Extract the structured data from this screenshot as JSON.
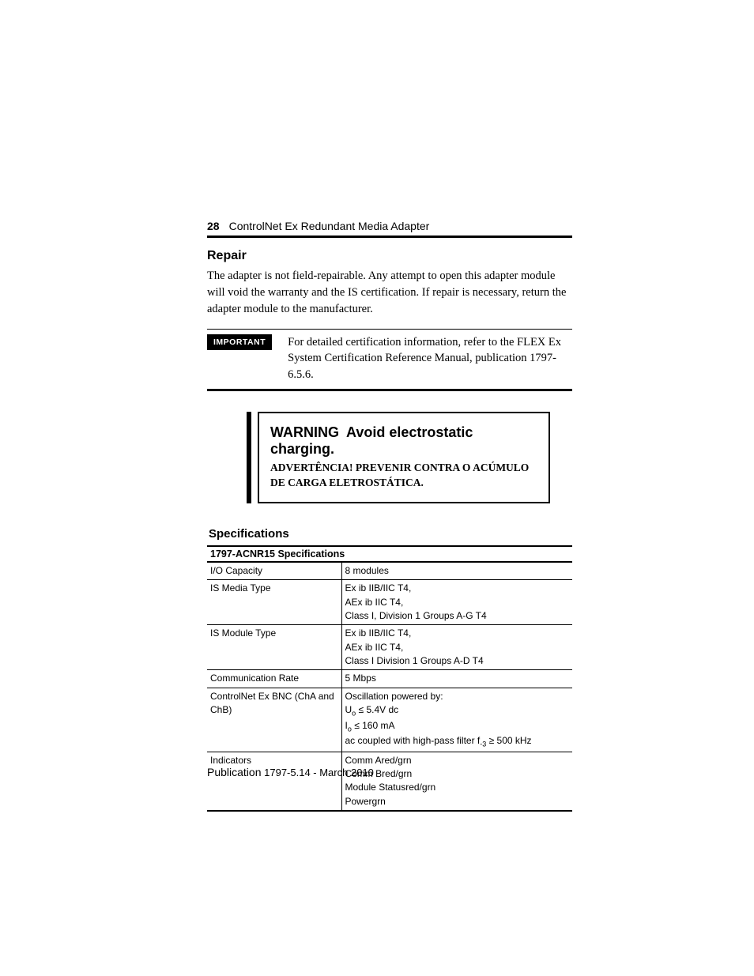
{
  "header": {
    "page_number": "28",
    "doc_title": "ControlNet Ex Redundant Media Adapter"
  },
  "repair": {
    "heading": "Repair",
    "body": "The adapter is not field-repairable. Any attempt to open this adapter module will void the warranty and the IS certification. If repair is necessary, return the adapter module to the manufacturer."
  },
  "important": {
    "badge": "IMPORTANT",
    "text": "For detailed certification information, refer to the FLEX Ex System Certification Reference Manual, publication 1797-6.5.6."
  },
  "warning": {
    "label": "WARNING",
    "msg_en": "Avoid electrostatic charging.",
    "sub_label": "ADVERTÊNCIA!",
    "sub_msg": "PREVENIR CONTRA O ACÚMULO DE CARGA ELETROSTÁTICA."
  },
  "specs": {
    "heading": "Specifications",
    "table_title": "1797-ACNR15 Specifications",
    "rows": [
      {
        "label": "I/O Capacity",
        "lines": [
          "8 modules"
        ]
      },
      {
        "label": "IS Media Type",
        "lines": [
          "Ex ib IIB/IIC T4,",
          "AEx ib IIC T4,",
          "Class I, Division 1 Groups A-G T4"
        ]
      },
      {
        "label": "IS Module Type",
        "lines": [
          "Ex ib IIB/IIC T4,",
          "AEx ib IIC T4,",
          "Class I Division 1 Groups A-D T4"
        ]
      },
      {
        "label": "Communication Rate",
        "lines": [
          "5 Mbps"
        ]
      },
      {
        "label": "ControlNet Ex BNC (ChA and ChB)",
        "lines": [
          "Oscillation powered by:",
          "Uₒ ≤ 5.4V dc",
          "Iₒ  ≤ 160 mA",
          "ac coupled with high-pass filter f₋₃ ≥ 500 kHz"
        ]
      },
      {
        "label": "Indicators",
        "lines": [
          "Comm Ared/grn",
          "Comm Bred/grn",
          "Module Statusred/grn",
          "Powergrn"
        ]
      }
    ]
  },
  "footer": {
    "pub_label": "Publication",
    "pub_value": "1797-5.14 - March 2010"
  },
  "style": {
    "colors": {
      "text": "#000000",
      "background": "#ffffff",
      "rule": "#000000",
      "badge_bg": "#000000",
      "badge_fg": "#ffffff"
    },
    "fonts": {
      "body_serif": "Georgia",
      "ui_sans": "Arial"
    }
  }
}
